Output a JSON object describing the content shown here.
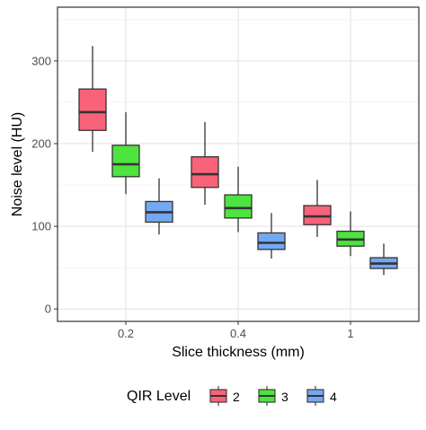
{
  "chart_data": {
    "type": "box",
    "xlabel": "Slice thickness (mm)",
    "ylabel": "Noise level (HU)",
    "categories": [
      "0.2",
      "0.4",
      "1"
    ],
    "yticks": [
      0,
      100,
      200,
      300
    ],
    "ylim": [
      -15,
      365
    ],
    "grid": true,
    "legend": {
      "title": "QIR Level",
      "position": "bottom",
      "entries": [
        "2",
        "3",
        "4"
      ]
    },
    "colors": {
      "2": "#f8637a",
      "3": "#4ee33e",
      "4": "#74a8f2"
    },
    "series": [
      {
        "name": "2",
        "boxes": [
          {
            "category": "0.2",
            "min": 190,
            "q1": 216,
            "median": 238,
            "q3": 266,
            "max": 318
          },
          {
            "category": "0.4",
            "min": 126,
            "q1": 147,
            "median": 163,
            "q3": 184,
            "max": 226
          },
          {
            "category": "1",
            "min": 87,
            "q1": 102,
            "median": 112,
            "q3": 125,
            "max": 156
          }
        ]
      },
      {
        "name": "3",
        "boxes": [
          {
            "category": "0.2",
            "min": 139,
            "q1": 160,
            "median": 175,
            "q3": 198,
            "max": 238
          },
          {
            "category": "0.4",
            "min": 93,
            "q1": 110,
            "median": 122,
            "q3": 138,
            "max": 172
          },
          {
            "category": "1",
            "min": 64,
            "q1": 76,
            "median": 84,
            "q3": 94,
            "max": 118
          }
        ]
      },
      {
        "name": "4",
        "boxes": [
          {
            "category": "0.2",
            "min": 90,
            "q1": 105,
            "median": 117,
            "q3": 130,
            "max": 158
          },
          {
            "category": "0.4",
            "min": 61,
            "q1": 72,
            "median": 80,
            "q3": 92,
            "max": 116
          },
          {
            "category": "1",
            "min": 41,
            "q1": 49,
            "median": 55,
            "q3": 62,
            "max": 79
          }
        ]
      }
    ]
  }
}
